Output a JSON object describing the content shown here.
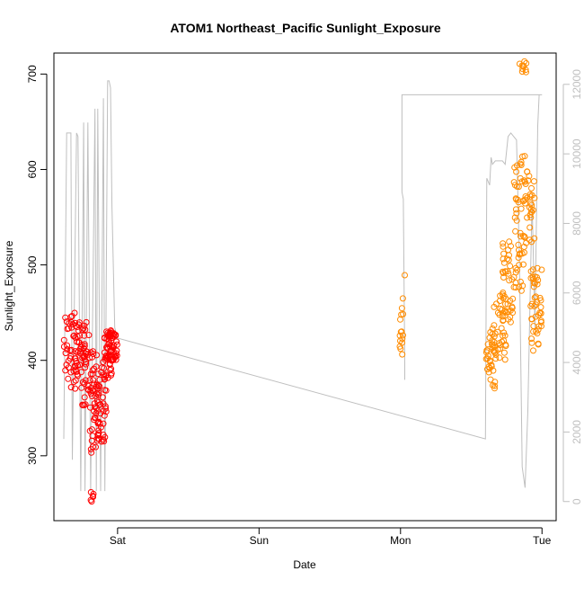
{
  "chart_data": {
    "type": "scatter",
    "title": "ATOM1 Northeast_Pacific Sunlight_Exposure",
    "xlabel": "Date",
    "ylabel": "Sunlight_Exposure",
    "x_ticks": [
      "Sat",
      "Sun",
      "Mon",
      "Tue"
    ],
    "x_tick_positions_days": [
      1.0,
      2.0,
      3.0,
      4.0
    ],
    "xlim_days": [
      0.55,
      4.1
    ],
    "ylim": [
      232,
      722
    ],
    "y_ticks": [
      300,
      400,
      500,
      600,
      700
    ],
    "ylim_right": [
      -550,
      12900
    ],
    "y_ticks_right": [
      0,
      2000,
      4000,
      6000,
      8000,
      10000,
      12000
    ],
    "right_axis_color": "#bfbfbf",
    "grid": false,
    "colors": {
      "series1": "#ff0000",
      "series2": "#ff8c00",
      "line": "#bfbfbf",
      "frame": "#000000"
    },
    "series": [
      {
        "color": "#ff0000",
        "marker": "open-circle",
        "clusters": [
          {
            "x": [
              0.62,
              0.74
            ],
            "y": [
              370,
              450
            ],
            "n": 55
          },
          {
            "x": [
              0.7,
              0.8
            ],
            "y": [
              395,
              440
            ],
            "n": 25
          },
          {
            "x": [
              0.74,
              0.86
            ],
            "y": [
              345,
              410
            ],
            "n": 45
          },
          {
            "x": [
              0.8,
              0.88
            ],
            "y": [
              300,
              380
            ],
            "n": 30
          },
          {
            "x": [
              0.81,
              0.83
            ],
            "y": [
              252,
              262
            ],
            "n": 6
          },
          {
            "x": [
              0.86,
              0.92
            ],
            "y": [
              310,
              400
            ],
            "n": 35
          },
          {
            "x": [
              0.9,
              0.96
            ],
            "y": [
              380,
              432
            ],
            "n": 40
          },
          {
            "x": [
              0.93,
              1.0
            ],
            "y": [
              400,
              432
            ],
            "n": 40
          }
        ]
      },
      {
        "color": "#ff8c00",
        "marker": "open-circle",
        "clusters": [
          {
            "x": [
              2.99,
              3.02
            ],
            "y": [
              405,
              465
            ],
            "n": 15
          },
          {
            "x": [
              3.03,
              3.04
            ],
            "y": [
              488,
              492
            ],
            "n": 1
          },
          {
            "x": [
              3.6,
              3.67
            ],
            "y": [
              370,
              430
            ],
            "n": 35
          },
          {
            "x": [
              3.65,
              3.75
            ],
            "y": [
              400,
              470
            ],
            "n": 35
          },
          {
            "x": [
              3.72,
              3.8
            ],
            "y": [
              440,
              530
            ],
            "n": 40
          },
          {
            "x": [
              3.8,
              3.88
            ],
            "y": [
              470,
              620
            ],
            "n": 55
          },
          {
            "x": [
              3.84,
              3.89
            ],
            "y": [
              700,
              714
            ],
            "n": 10
          },
          {
            "x": [
              3.88,
              3.95
            ],
            "y": [
              520,
              600
            ],
            "n": 30
          },
          {
            "x": [
              3.92,
              4.0
            ],
            "y": [
              410,
              500
            ],
            "n": 45
          }
        ]
      }
    ],
    "secondary_line": {
      "color": "#bfbfbf",
      "points": [
        [
          0.62,
          1800
        ],
        [
          0.64,
          10600
        ],
        [
          0.67,
          10600
        ],
        [
          0.68,
          1200
        ],
        [
          0.71,
          10600
        ],
        [
          0.72,
          10500
        ],
        [
          0.74,
          300
        ],
        [
          0.76,
          10900
        ],
        [
          0.77,
          300
        ],
        [
          0.79,
          10900
        ],
        [
          0.81,
          300
        ],
        [
          0.84,
          11300
        ],
        [
          0.85,
          300
        ],
        [
          0.86,
          11300
        ],
        [
          0.88,
          300
        ],
        [
          0.9,
          11600
        ],
        [
          0.91,
          300
        ],
        [
          0.93,
          12100
        ],
        [
          0.94,
          12100
        ],
        [
          0.95,
          11900
        ],
        [
          0.96,
          8500
        ],
        [
          0.98,
          5000
        ],
        [
          1.0,
          4700
        ],
        [
          3.6,
          1800
        ],
        [
          3.61,
          9300
        ],
        [
          3.63,
          9100
        ],
        [
          3.64,
          9900
        ],
        [
          3.65,
          9700
        ],
        [
          3.67,
          9800
        ],
        [
          3.72,
          9800
        ],
        [
          3.74,
          9700
        ],
        [
          3.76,
          10500
        ],
        [
          3.78,
          10600
        ],
        [
          3.82,
          10400
        ],
        [
          3.84,
          7000
        ],
        [
          3.86,
          1000
        ],
        [
          3.88,
          400
        ],
        [
          3.9,
          2600
        ],
        [
          3.93,
          8700
        ],
        [
          3.95,
          5000
        ],
        [
          3.97,
          10800
        ],
        [
          3.98,
          11700
        ],
        [
          4.0,
          11700
        ],
        [
          3.01,
          11700
        ],
        [
          3.01,
          8900
        ],
        [
          3.02,
          8700
        ],
        [
          3.03,
          4000
        ],
        [
          3.03,
          3500
        ]
      ]
    }
  }
}
